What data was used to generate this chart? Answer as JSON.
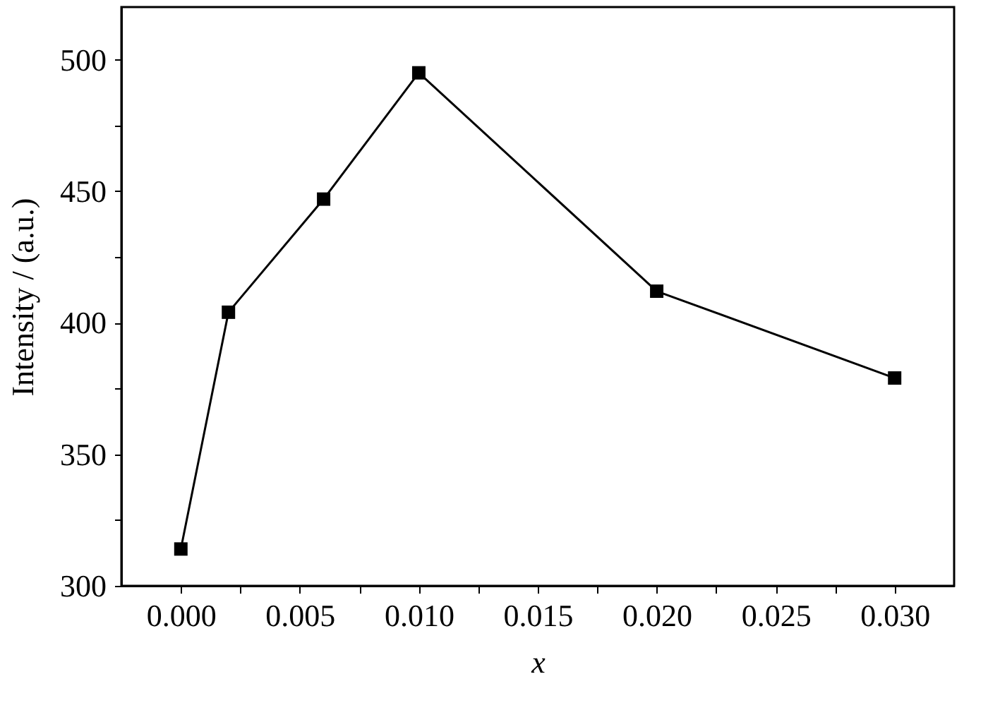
{
  "chart_data": {
    "type": "line",
    "xlabel": "x",
    "ylabel": "Intensity / (a.u.)",
    "x": [
      0.0,
      0.002,
      0.006,
      0.01,
      0.02,
      0.03
    ],
    "series": [
      {
        "color": "#000000",
        "values": [
          314,
          404,
          447,
          495,
          412,
          379
        ]
      }
    ],
    "marker": "square",
    "line_style": "solid",
    "grid": false,
    "xlim": [
      -0.0025,
      0.0325
    ],
    "xticks": [
      {
        "value": 0,
        "label": "0.000"
      },
      {
        "value": 0.0025,
        "label": null
      },
      {
        "value": 0.005,
        "label": "0.005"
      },
      {
        "value": 0.0075,
        "label": null
      },
      {
        "value": 0.01,
        "label": "0.010"
      },
      {
        "value": 0.0125,
        "label": null
      },
      {
        "value": 0.015,
        "label": "0.015"
      },
      {
        "value": 0.0175,
        "label": null
      },
      {
        "value": 0.02,
        "label": "0.020"
      },
      {
        "value": 0.0225,
        "label": null
      },
      {
        "value": 0.025,
        "label": "0.025"
      },
      {
        "value": 0.0275,
        "label": null
      },
      {
        "value": 0.03,
        "label": "0.030"
      }
    ],
    "ylim": [
      300,
      520
    ],
    "yticks": [
      300,
      {
        "value": 325,
        "label": null
      },
      350,
      {
        "value": 375,
        "label": null
      },
      400,
      {
        "value": 425,
        "label": null
      },
      450,
      {
        "value": 475,
        "label": null
      },
      500
    ]
  }
}
